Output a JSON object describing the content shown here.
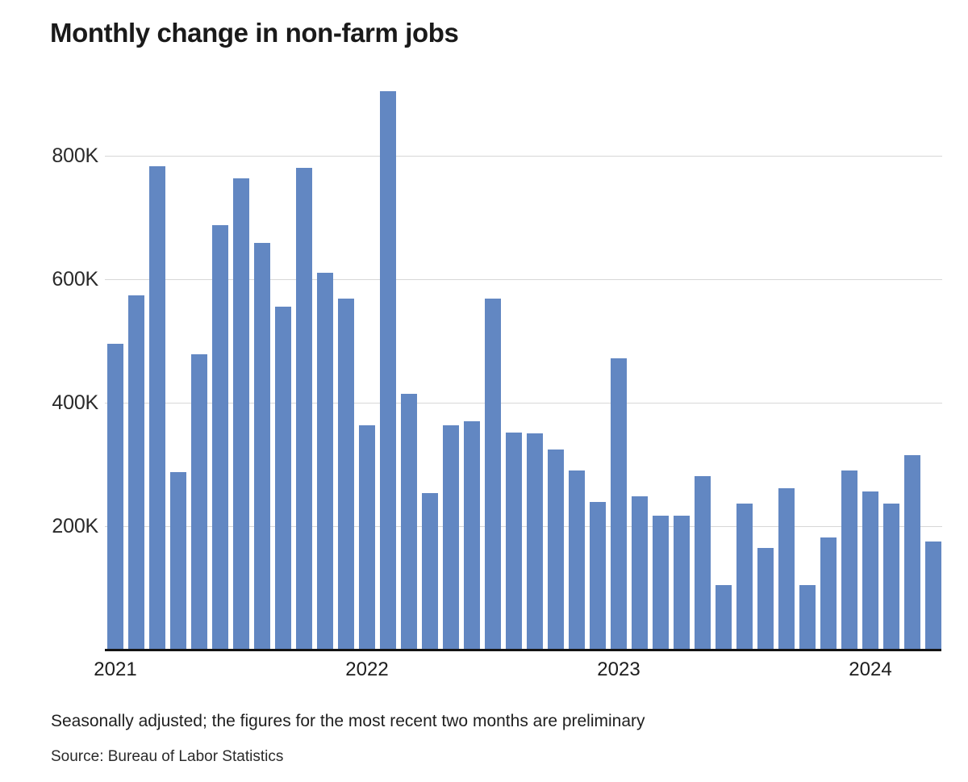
{
  "title": "Monthly change in non-farm jobs",
  "notes": {
    "footnote": "Seasonally adjusted; the figures for the most recent two months are preliminary",
    "source": "Source: Bureau of Labor Statistics"
  },
  "colors": {
    "bar": "#6287c2",
    "grid": "#d7d7d7",
    "axis": "#141414",
    "title_text": "#1a1a1a",
    "tick_text": "#2a2a2a"
  },
  "y_axis": {
    "ticks": [
      {
        "label": "800K",
        "value": 800
      },
      {
        "label": "600K",
        "value": 600
      },
      {
        "label": "400K",
        "value": 400
      },
      {
        "label": "200K",
        "value": 200
      }
    ]
  },
  "x_axis": {
    "ticks": [
      "2021",
      "2022",
      "2023",
      "2024"
    ]
  },
  "chart_data": {
    "type": "bar",
    "title": "Monthly change in non-farm jobs",
    "unit": "jobs, thousands (seasonally adjusted)",
    "x": [
      "Jan 2021",
      "Feb 2021",
      "Mar 2021",
      "Apr 2021",
      "May 2021",
      "Jun 2021",
      "Jul 2021",
      "Aug 2021",
      "Sep 2021",
      "Oct 2021",
      "Nov 2021",
      "Dec 2021",
      "Jan 2022",
      "Feb 2022",
      "Mar 2022",
      "Apr 2022",
      "May 2022",
      "Jun 2022",
      "Jul 2022",
      "Aug 2022",
      "Sep 2022",
      "Oct 2022",
      "Nov 2022",
      "Dec 2022",
      "Jan 2023",
      "Feb 2023",
      "Mar 2023",
      "Apr 2023",
      "May 2023",
      "Jun 2023",
      "Jul 2023",
      "Aug 2023",
      "Sep 2023",
      "Oct 2023",
      "Nov 2023",
      "Dec 2023",
      "Jan 2024",
      "Feb 2024",
      "Mar 2024",
      "Apr 2024"
    ],
    "values": [
      495,
      574,
      783,
      287,
      479,
      688,
      764,
      659,
      556,
      780,
      611,
      568,
      364,
      904,
      414,
      254,
      364,
      370,
      568,
      352,
      350,
      324,
      290,
      239,
      472,
      248,
      217,
      217,
      281,
      105,
      236,
      165,
      262,
      105,
      182,
      290,
      256,
      236,
      315,
      175
    ],
    "ylim": [
      0,
      950
    ],
    "y_tick_values": [
      200,
      400,
      600,
      800
    ],
    "grid": "horizontal",
    "legend": "none",
    "bar_color": "#6287c2"
  }
}
